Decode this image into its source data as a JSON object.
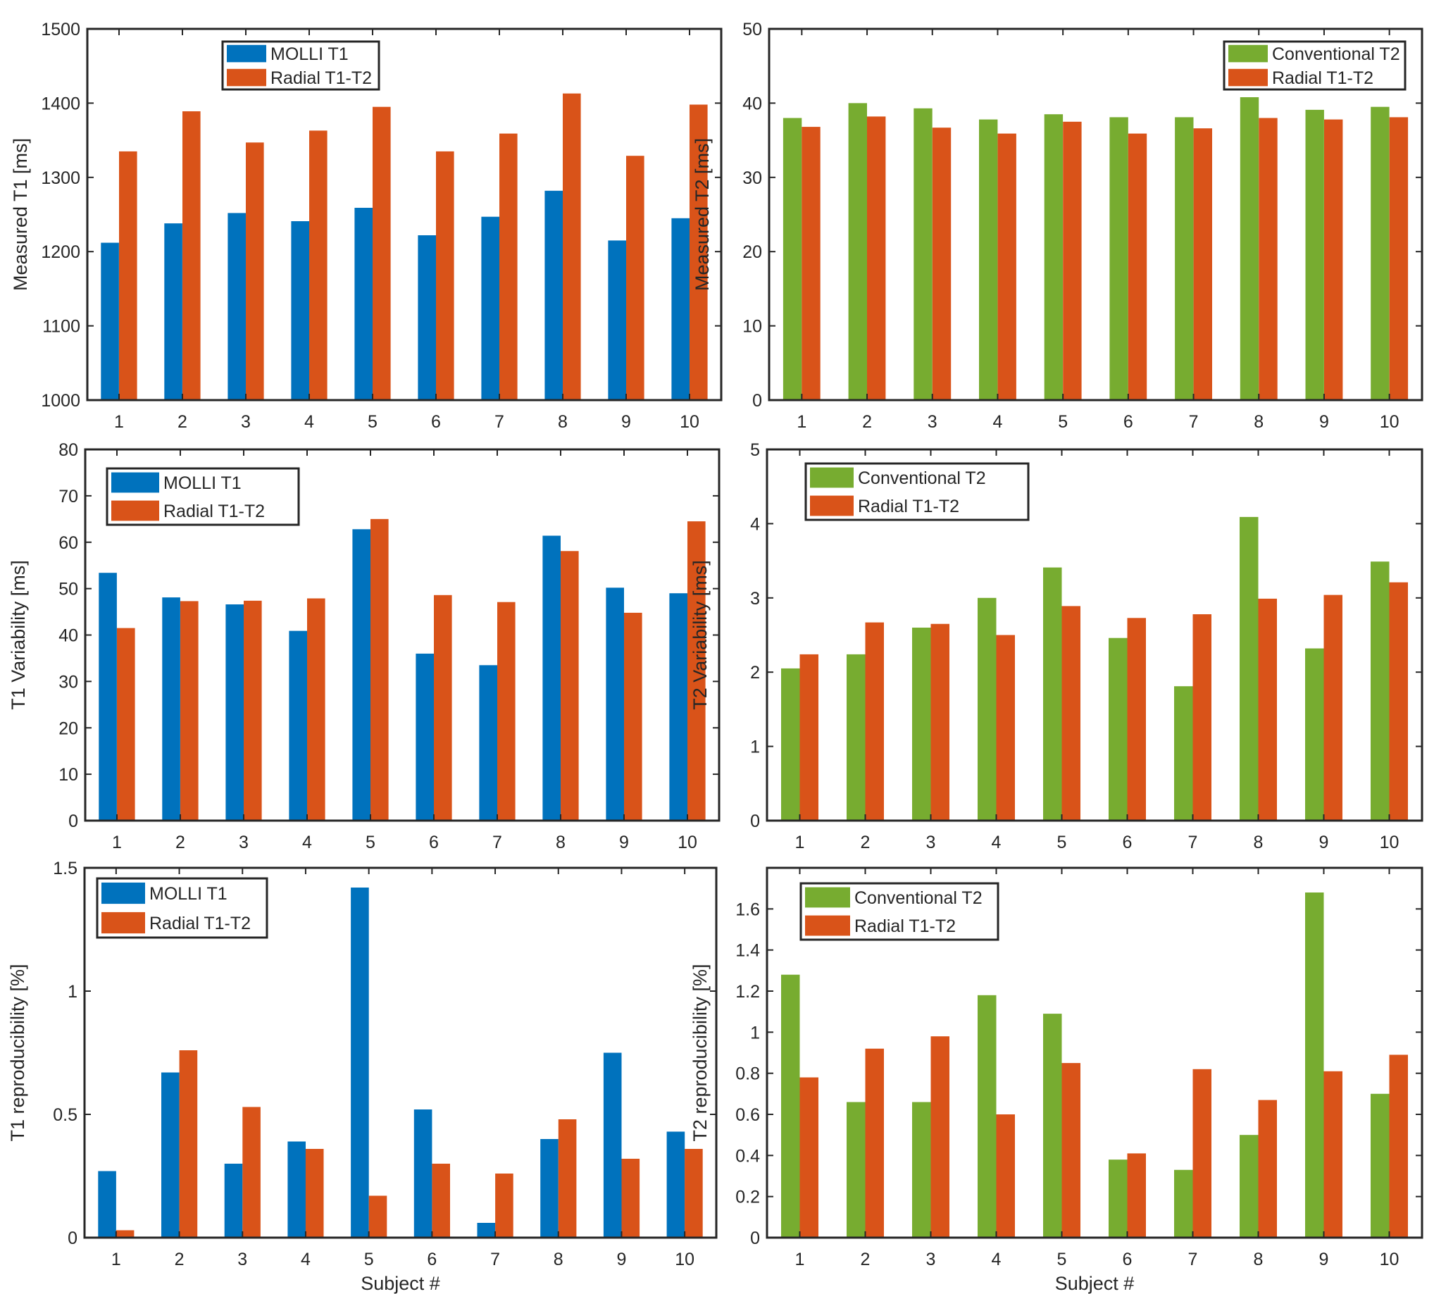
{
  "colors": {
    "molli": "#0072BD",
    "radial": "#D95319",
    "conventional": "#77AC30",
    "axis": "#262626"
  },
  "chart_data": [
    {
      "id": "t1-measured",
      "type": "bar",
      "categories": [
        "1",
        "2",
        "3",
        "4",
        "5",
        "6",
        "7",
        "8",
        "9",
        "10"
      ],
      "xlabel": "",
      "ylabel": "Measured T1 [ms]",
      "ylim": [
        1000,
        1500
      ],
      "yticks": [
        1000,
        1100,
        1200,
        1300,
        1400,
        1500
      ],
      "ytick_labels": [
        "1000",
        "1100",
        "1200",
        "1300",
        "1400",
        "1500"
      ],
      "legend_position": "top-center",
      "series": [
        {
          "name": "MOLLI T1",
          "color_key": "molli",
          "values": [
            1212,
            1238,
            1252,
            1241,
            1259,
            1222,
            1247,
            1282,
            1215,
            1245
          ]
        },
        {
          "name": "Radial T1-T2",
          "color_key": "radial",
          "values": [
            1335,
            1389,
            1347,
            1363,
            1395,
            1335,
            1359,
            1413,
            1329,
            1398
          ]
        }
      ]
    },
    {
      "id": "t2-measured",
      "type": "bar",
      "categories": [
        "1",
        "2",
        "3",
        "4",
        "5",
        "6",
        "7",
        "8",
        "9",
        "10"
      ],
      "xlabel": "",
      "ylabel": "Measured T2 [ms]",
      "ylim": [
        0,
        50
      ],
      "yticks": [
        0,
        10,
        20,
        30,
        40,
        50
      ],
      "ytick_labels": [
        "0",
        "10",
        "20",
        "30",
        "40",
        "50"
      ],
      "legend_position": "top-right",
      "series": [
        {
          "name": "Conventional T2",
          "color_key": "conventional",
          "values": [
            38.0,
            40.0,
            39.3,
            37.8,
            38.5,
            38.1,
            38.1,
            40.8,
            39.1,
            39.5
          ]
        },
        {
          "name": "Radial T1-T2",
          "color_key": "radial",
          "values": [
            36.8,
            38.2,
            36.7,
            35.9,
            37.5,
            35.9,
            36.6,
            38.0,
            37.8,
            38.1
          ]
        }
      ]
    },
    {
      "id": "t1-variability",
      "type": "bar",
      "categories": [
        "1",
        "2",
        "3",
        "4",
        "5",
        "6",
        "7",
        "8",
        "9",
        "10"
      ],
      "xlabel": "",
      "ylabel": "T1 Variability [ms]",
      "ylim": [
        0,
        80
      ],
      "yticks": [
        0,
        10,
        20,
        30,
        40,
        50,
        60,
        70,
        80
      ],
      "ytick_labels": [
        "0",
        "10",
        "20",
        "30",
        "40",
        "50",
        "60",
        "70",
        "80"
      ],
      "legend_position": "top-left",
      "series": [
        {
          "name": "MOLLI T1",
          "color_key": "molli",
          "values": [
            53.4,
            48.1,
            46.6,
            40.9,
            62.8,
            36.0,
            33.5,
            61.4,
            50.2,
            49.0
          ]
        },
        {
          "name": "Radial T1-T2",
          "color_key": "radial",
          "values": [
            41.5,
            47.3,
            47.4,
            47.9,
            65.0,
            48.6,
            47.1,
            58.1,
            44.8,
            64.5
          ]
        }
      ]
    },
    {
      "id": "t2-variability",
      "type": "bar",
      "categories": [
        "1",
        "2",
        "3",
        "4",
        "5",
        "6",
        "7",
        "8",
        "9",
        "10"
      ],
      "xlabel": "",
      "ylabel": "T2 Variability [ms]",
      "ylim": [
        0,
        5
      ],
      "yticks": [
        0,
        1,
        2,
        3,
        4,
        5
      ],
      "ytick_labels": [
        "0",
        "1",
        "2",
        "3",
        "4",
        "5"
      ],
      "legend_position": "top-left",
      "series": [
        {
          "name": "Conventional T2",
          "color_key": "conventional",
          "values": [
            2.05,
            2.24,
            2.6,
            3.0,
            3.41,
            2.46,
            1.81,
            4.09,
            2.32,
            3.49
          ]
        },
        {
          "name": "Radial T1-T2",
          "color_key": "radial",
          "values": [
            2.24,
            2.67,
            2.65,
            2.5,
            2.89,
            2.73,
            2.78,
            2.99,
            3.04,
            3.21
          ]
        }
      ]
    },
    {
      "id": "t1-reproducibility",
      "type": "bar",
      "categories": [
        "1",
        "2",
        "3",
        "4",
        "5",
        "6",
        "7",
        "8",
        "9",
        "10"
      ],
      "xlabel": "Subject #",
      "ylabel": "T1 reproducibility [%]",
      "ylim": [
        0,
        1.5
      ],
      "yticks": [
        0,
        0.5,
        1,
        1.5
      ],
      "ytick_labels": [
        "0",
        "0.5",
        "1",
        "1.5"
      ],
      "legend_position": "top-left",
      "series": [
        {
          "name": "MOLLI T1",
          "color_key": "molli",
          "values": [
            0.27,
            0.67,
            0.3,
            0.39,
            1.42,
            0.52,
            0.06,
            0.4,
            0.75,
            0.43
          ]
        },
        {
          "name": "Radial T1-T2",
          "color_key": "radial",
          "values": [
            0.03,
            0.76,
            0.53,
            0.36,
            0.17,
            0.3,
            0.26,
            0.48,
            0.32,
            0.36
          ]
        }
      ]
    },
    {
      "id": "t2-reproducibility",
      "type": "bar",
      "categories": [
        "1",
        "2",
        "3",
        "4",
        "5",
        "6",
        "7",
        "8",
        "9",
        "10"
      ],
      "xlabel": "Subject #",
      "ylabel": "T2 reproducibility [%]",
      "ylim": [
        0,
        1.8
      ],
      "yticks": [
        0,
        0.2,
        0.4,
        0.6,
        0.8,
        1,
        1.2,
        1.4,
        1.6
      ],
      "ytick_labels": [
        "0",
        "0.2",
        "0.4",
        "0.6",
        "0.8",
        "1",
        "1.2",
        "1.4",
        "1.6"
      ],
      "legend_position": "top-left",
      "series": [
        {
          "name": "Conventional T2",
          "color_key": "conventional",
          "values": [
            1.28,
            0.66,
            0.66,
            1.18,
            1.09,
            0.38,
            0.33,
            0.5,
            1.68,
            0.7
          ]
        },
        {
          "name": "Radial T1-T2",
          "color_key": "radial",
          "values": [
            0.78,
            0.92,
            0.98,
            0.6,
            0.85,
            0.41,
            0.82,
            0.67,
            0.81,
            0.89
          ]
        }
      ]
    }
  ]
}
